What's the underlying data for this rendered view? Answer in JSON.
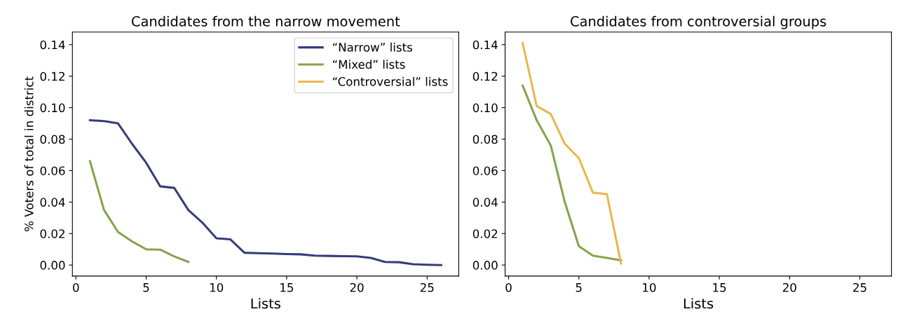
{
  "chart_data": [
    {
      "type": "line",
      "title": "Candidates from the narrow movement",
      "xlabel": "Lists",
      "ylabel": "% Voters of total in district",
      "xlim": [
        -0.25,
        27.25
      ],
      "xticks": [
        0,
        5,
        10,
        15,
        20,
        25
      ],
      "ylim": [
        -0.007,
        0.148
      ],
      "yticks": [
        {
          "value": 0,
          "label": "0.00"
        },
        {
          "value": 0.02,
          "label": "0.02"
        },
        {
          "value": 0.04,
          "label": "0.04"
        },
        {
          "value": 0.06,
          "label": "0.06"
        },
        {
          "value": 0.08,
          "label": "0.08"
        },
        {
          "value": 0.1,
          "label": "0.10"
        },
        {
          "value": 0.12,
          "label": "0.12"
        },
        {
          "value": 0.14,
          "label": "0.14"
        }
      ],
      "legend": "top right",
      "grid": false,
      "series": [
        {
          "name": "“Narrow” lists",
          "color": "#363d7a",
          "x": [
            1,
            2,
            3,
            4,
            5,
            6,
            7,
            8,
            9,
            10,
            11,
            12,
            13,
            14,
            15,
            16,
            17,
            18,
            19,
            20,
            21,
            22,
            23,
            24,
            25,
            26
          ],
          "values": [
            0.092,
            0.0915,
            0.09,
            0.077,
            0.065,
            0.05,
            0.049,
            0.035,
            0.027,
            0.017,
            0.0163,
            0.0078,
            0.0075,
            0.0073,
            0.007,
            0.0068,
            0.006,
            0.0058,
            0.0056,
            0.0055,
            0.0045,
            0.002,
            0.0018,
            0.0005,
            0.0002,
            0.0
          ]
        },
        {
          "name": "“Mixed” lists",
          "color": "#86a34f",
          "x": [
            1,
            2,
            3,
            4,
            5,
            6,
            7,
            8
          ],
          "values": [
            0.066,
            0.035,
            0.021,
            0.015,
            0.01,
            0.0098,
            0.0055,
            0.002
          ]
        },
        {
          "name": "“Controversial” lists",
          "color": "#e8b84a"
        }
      ]
    },
    {
      "type": "line",
      "title": "Candidates from controversial groups",
      "xlabel": "Lists",
      "xlim": [
        -0.25,
        27.25
      ],
      "xticks": [
        0,
        5,
        10,
        15,
        20,
        25
      ],
      "ylim": [
        -0.007,
        0.148
      ],
      "yticks": [
        {
          "value": 0,
          "label": "0.00"
        },
        {
          "value": 0.02,
          "label": "0.02"
        },
        {
          "value": 0.04,
          "label": "0.04"
        },
        {
          "value": 0.06,
          "label": "0.06"
        },
        {
          "value": 0.08,
          "label": "0.08"
        },
        {
          "value": 0.1,
          "label": "0.10"
        },
        {
          "value": 0.12,
          "label": "0.12"
        },
        {
          "value": 0.14,
          "label": "0.14"
        }
      ],
      "legend": false,
      "grid": false,
      "series": [
        {
          "color": "#86a34f",
          "x": [
            1,
            2,
            3,
            4,
            5,
            6,
            7,
            8
          ],
          "values": [
            0.114,
            0.092,
            0.076,
            0.04,
            0.012,
            0.006,
            0.0045,
            0.003
          ]
        },
        {
          "color": "#e8b84a",
          "x": [
            1,
            2,
            3,
            4,
            5,
            6,
            7,
            8
          ],
          "values": [
            0.141,
            0.101,
            0.096,
            0.077,
            0.068,
            0.046,
            0.045,
            0.001
          ]
        }
      ]
    }
  ]
}
